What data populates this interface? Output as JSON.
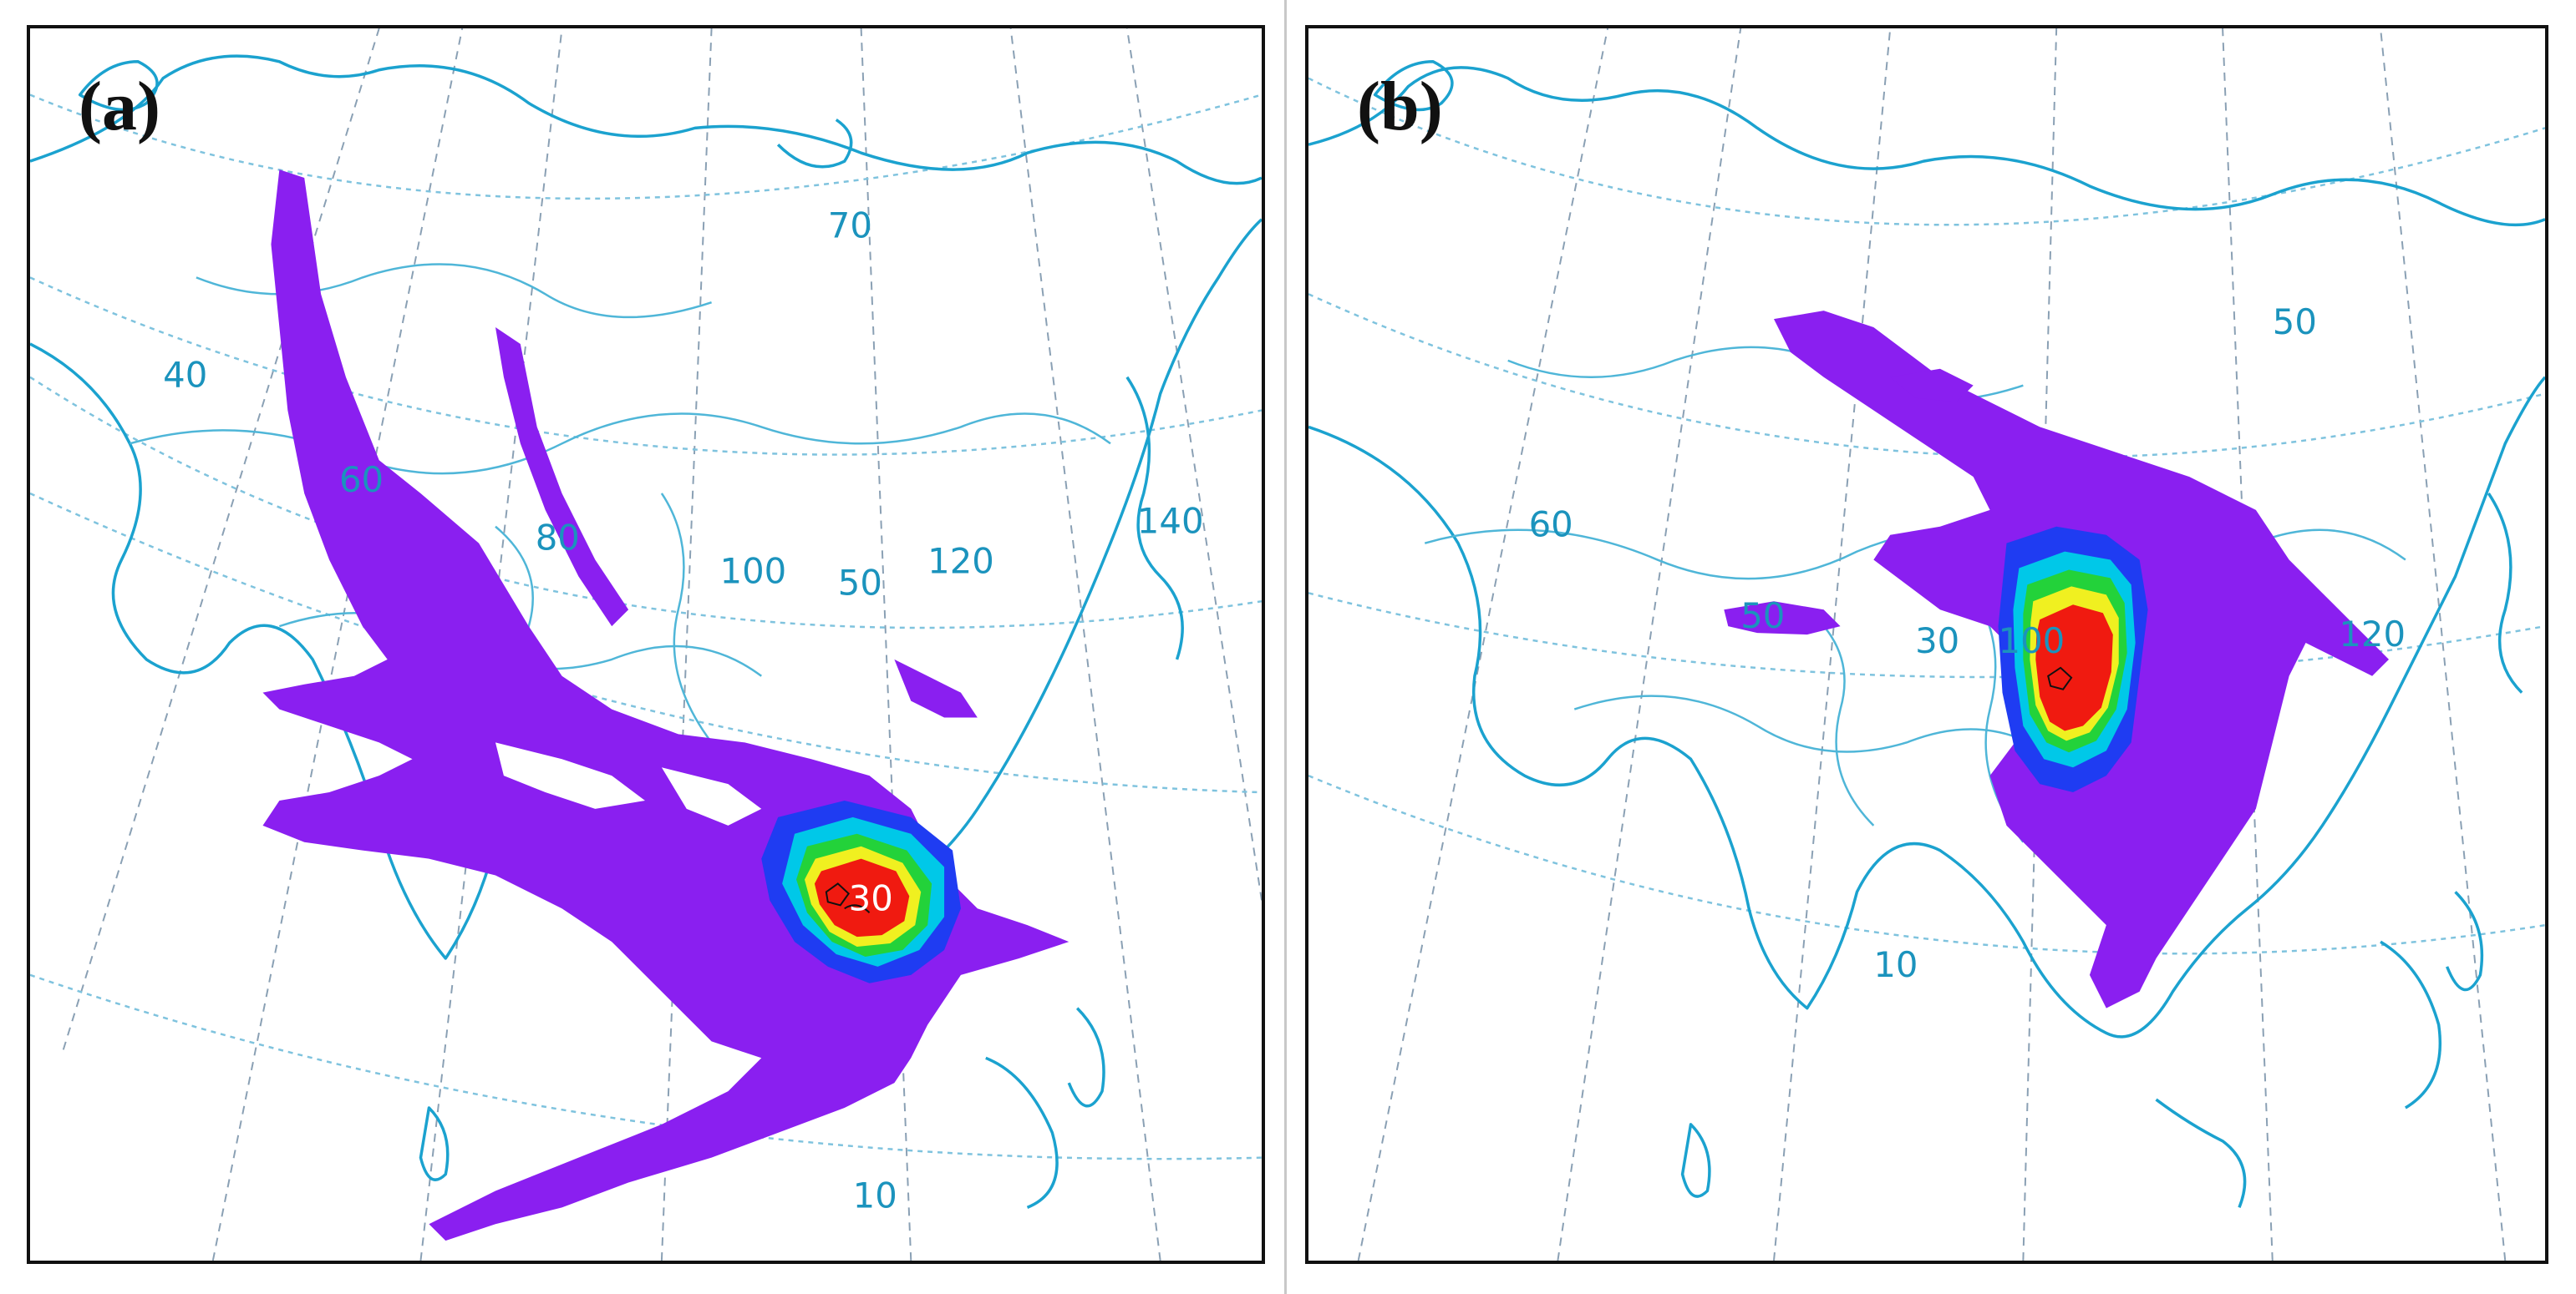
{
  "panels": [
    {
      "label": "(a)",
      "grid_labels": [
        "70",
        "40",
        "60",
        "80",
        "100",
        "50",
        "120",
        "140",
        "30",
        "10"
      ]
    },
    {
      "label": "(b)",
      "grid_labels": [
        "50",
        "60",
        "50",
        "30",
        "100",
        "120",
        "10"
      ]
    }
  ],
  "colors": {
    "coastline": "#1ba2cf",
    "gridline": "#8aa0b4",
    "plume_low": "#8a1ff0",
    "plume_mid_blue": "#1f3cf2",
    "plume_cyan": "#00c8e8",
    "plume_green": "#23d23a",
    "plume_yellow": "#f0f020",
    "plume_high": "#f01a10"
  }
}
